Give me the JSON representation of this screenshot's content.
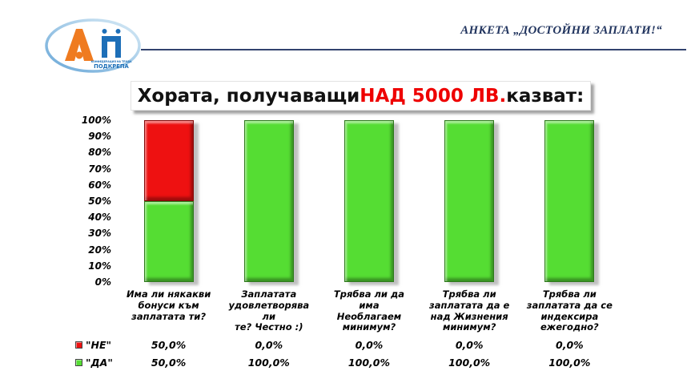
{
  "header": {
    "survey_title": "АНКЕТА „ДОСТОЙНИ ЗАПЛАТИ!“",
    "logo": {
      "org_name": "ПОДКРЕПА",
      "org_tagline": "КОНФЕДЕРАЦИЯ НА ТРУДА",
      "letter_a": "А",
      "letter_p": "П",
      "orange": "#ef7b20",
      "blue": "#1d6fb8"
    }
  },
  "chart_data": {
    "type": "bar",
    "stacked": true,
    "title_parts": {
      "prefix": "Хората, получаващи ",
      "highlight": "НАД 5000 ЛВ.",
      "suffix": " казват:",
      "highlight_color": "#ee0000"
    },
    "categories": [
      "Има ли някакви\nбонуси към\nзаплатата ти?",
      "Заплатата\nудовлетворява ли\nте? Честно :)",
      "Трябва ли да има\nНеоблагаем\nминимум?",
      "Трябва ли\nзаплатата да е\nнад Жизнения\nминимум?",
      "Трябва ли\nзаплатата да се\nиндексира\nежегодно?"
    ],
    "series": [
      {
        "name": "\"НЕ\"",
        "color": "#ee1111",
        "values": [
          50.0,
          0.0,
          0.0,
          0.0,
          0.0
        ],
        "display": [
          "50,0%",
          "0,0%",
          "0,0%",
          "0,0%",
          "0,0%"
        ]
      },
      {
        "name": "\"ДА\"",
        "color": "#55dd33",
        "values": [
          50.0,
          100.0,
          100.0,
          100.0,
          100.0
        ],
        "display": [
          "50,0%",
          "100,0%",
          "100,0%",
          "100,0%",
          "100,0%"
        ]
      }
    ],
    "y_ticks": [
      "100%",
      "90%",
      "80%",
      "70%",
      "60%",
      "50%",
      "40%",
      "30%",
      "20%",
      "10%",
      "0%"
    ],
    "ylim": [
      0,
      100
    ],
    "grid": false,
    "legend_position": "bottom-left-table"
  }
}
